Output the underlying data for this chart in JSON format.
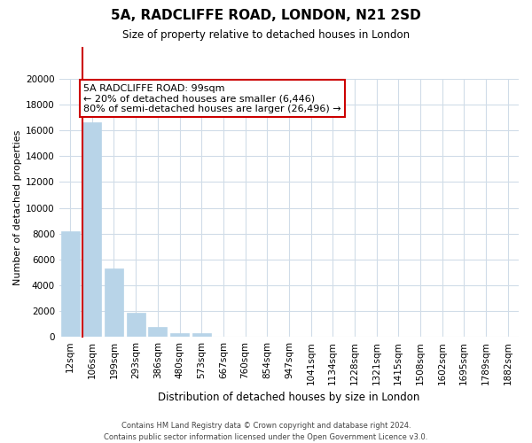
{
  "title": "5A, RADCLIFFE ROAD, LONDON, N21 2SD",
  "subtitle": "Size of property relative to detached houses in London",
  "xlabel": "Distribution of detached houses by size in London",
  "ylabel": "Number of detached properties",
  "footer_line1": "Contains HM Land Registry data © Crown copyright and database right 2024.",
  "footer_line2": "Contains public sector information licensed under the Open Government Licence v3.0.",
  "bar_labels": [
    "12sqm",
    "106sqm",
    "199sqm",
    "293sqm",
    "386sqm",
    "480sqm",
    "573sqm",
    "667sqm",
    "760sqm",
    "854sqm",
    "947sqm",
    "1041sqm",
    "1134sqm",
    "1228sqm",
    "1321sqm",
    "1415sqm",
    "1508sqm",
    "1602sqm",
    "1695sqm",
    "1789sqm",
    "1882sqm"
  ],
  "bar_values": [
    8200,
    16600,
    5300,
    1850,
    750,
    280,
    250,
    0,
    0,
    0,
    0,
    0,
    0,
    0,
    0,
    0,
    0,
    0,
    0,
    0,
    0
  ],
  "bar_color": "#b8d4e8",
  "marker_color": "#cc0000",
  "annotation_title": "5A RADCLIFFE ROAD: 99sqm",
  "annotation_line1": "← 20% of detached houses are smaller (6,446)",
  "annotation_line2": "80% of semi-detached houses are larger (26,496) →",
  "annotation_box_color": "#ffffff",
  "annotation_box_edge": "#cc0000",
  "ylim": [
    0,
    20000
  ],
  "yticks": [
    0,
    2000,
    4000,
    6000,
    8000,
    10000,
    12000,
    14000,
    16000,
    18000,
    20000
  ],
  "background_color": "#ffffff",
  "grid_color": "#d0dce8",
  "title_fontsize": 11,
  "subtitle_fontsize": 8.5,
  "ylabel_fontsize": 8,
  "xlabel_fontsize": 8.5,
  "tick_fontsize": 7.5,
  "footer_fontsize": 6,
  "annotation_fontsize": 8
}
